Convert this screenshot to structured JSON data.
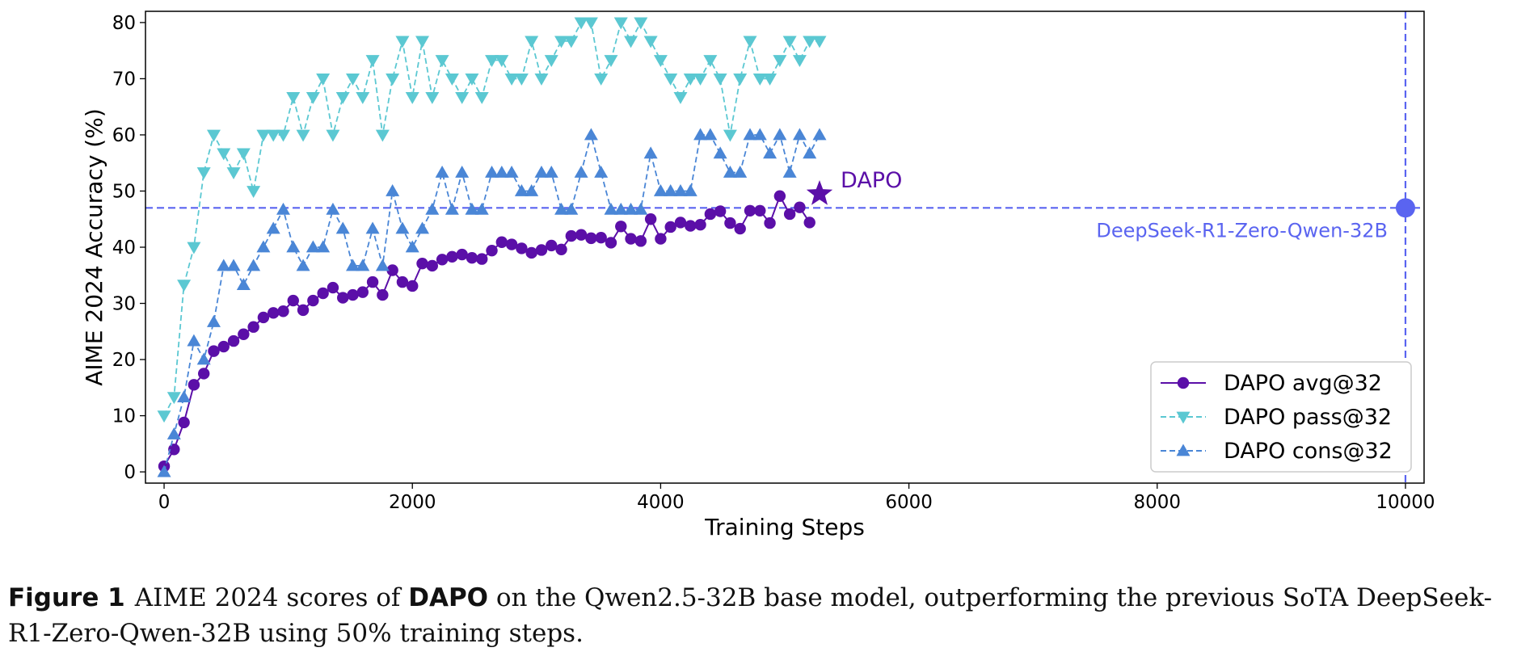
{
  "chart_data": {
    "type": "line",
    "xlabel": "Training Steps",
    "ylabel": "AIME 2024 Accuracy (%)",
    "xlim": [
      -150,
      10150
    ],
    "ylim": [
      -2,
      82
    ],
    "xticks": [
      0,
      2000,
      4000,
      6000,
      8000,
      10000
    ],
    "yticks": [
      0,
      10,
      20,
      30,
      40,
      50,
      60,
      70,
      80
    ],
    "xtick_labels": [
      "0",
      "2000",
      "4000",
      "6000",
      "8000",
      "10000"
    ],
    "ytick_labels": [
      "0",
      "10",
      "20",
      "30",
      "40",
      "50",
      "60",
      "70",
      "80"
    ],
    "grid": false,
    "legend_position": "bottom-right",
    "series": [
      {
        "name": "DAPO avg@32",
        "color": "#5b0fa8",
        "marker": "circle",
        "linestyle": "solid",
        "x": [
          0,
          80,
          160,
          240,
          320,
          400,
          480,
          560,
          640,
          720,
          800,
          880,
          960,
          1040,
          1120,
          1200,
          1280,
          1360,
          1440,
          1520,
          1600,
          1680,
          1760,
          1840,
          1920,
          2000,
          2080,
          2160,
          2240,
          2320,
          2400,
          2480,
          2560,
          2640,
          2720,
          2800,
          2880,
          2960,
          3040,
          3120,
          3200,
          3280,
          3360,
          3440,
          3520,
          3600,
          3680,
          3760,
          3840,
          3920,
          4000,
          4080,
          4160,
          4240,
          4320,
          4400,
          4480,
          4560,
          4640,
          4720,
          4800,
          4880,
          4960,
          5040,
          5120,
          5200
        ],
        "y": [
          1,
          4,
          8.8,
          15.5,
          17.5,
          21.5,
          22.3,
          23.3,
          24.5,
          25.8,
          27.5,
          28.3,
          28.6,
          30.5,
          28.8,
          30.5,
          31.8,
          32.8,
          31,
          31.5,
          32,
          33.8,
          31.5,
          35.9,
          33.8,
          33.1,
          37.1,
          36.7,
          37.8,
          38.3,
          38.7,
          38.1,
          37.9,
          39.4,
          40.9,
          40.5,
          39.8,
          39,
          39.5,
          40.3,
          39.6,
          42,
          42.2,
          41.6,
          41.7,
          40.8,
          43.7,
          41.5,
          41.1,
          45,
          41.5,
          43.6,
          44.4,
          43.8,
          44,
          45.9,
          46.4,
          44.3,
          43.3,
          46.5,
          46.5,
          44.3,
          49.1,
          45.9,
          47.1,
          44.4
        ]
      },
      {
        "name": "DAPO pass@32",
        "color": "#5bc8d2",
        "marker": "triangle-down",
        "linestyle": "dashed",
        "x": [
          0,
          80,
          160,
          240,
          320,
          400,
          480,
          560,
          640,
          720,
          800,
          880,
          960,
          1040,
          1120,
          1200,
          1280,
          1360,
          1440,
          1520,
          1600,
          1680,
          1760,
          1840,
          1920,
          2000,
          2080,
          2160,
          2240,
          2320,
          2400,
          2480,
          2560,
          2640,
          2720,
          2800,
          2880,
          2960,
          3040,
          3120,
          3200,
          3280,
          3360,
          3440,
          3520,
          3600,
          3680,
          3760,
          3840,
          3920,
          4000,
          4080,
          4160,
          4240,
          4320,
          4400,
          4480,
          4560,
          4640,
          4720,
          4800,
          4880,
          4960,
          5040,
          5120,
          5200,
          5280
        ],
        "y": [
          10,
          13.3,
          33.3,
          40,
          53.3,
          60,
          56.7,
          53.3,
          56.7,
          50,
          60,
          60,
          60,
          66.7,
          60,
          66.7,
          70,
          60,
          66.7,
          70,
          66.7,
          73.3,
          60,
          70,
          76.7,
          66.7,
          76.7,
          66.7,
          73.3,
          70,
          66.7,
          70,
          66.7,
          73.3,
          73.3,
          70,
          70,
          76.7,
          70,
          73.3,
          76.7,
          76.7,
          80,
          80,
          70,
          73.3,
          80,
          76.7,
          80,
          76.7,
          73.3,
          70,
          66.7,
          70,
          70,
          73.3,
          70,
          60,
          70,
          76.7,
          70,
          70,
          73.3,
          76.7,
          73.3,
          76.7,
          76.7
        ]
      },
      {
        "name": "DAPO cons@32",
        "color": "#4a86d6",
        "marker": "triangle-up",
        "linestyle": "dashed",
        "x": [
          0,
          80,
          160,
          240,
          320,
          400,
          480,
          560,
          640,
          720,
          800,
          880,
          960,
          1040,
          1120,
          1200,
          1280,
          1360,
          1440,
          1520,
          1600,
          1680,
          1760,
          1840,
          1920,
          2000,
          2080,
          2160,
          2240,
          2320,
          2400,
          2480,
          2560,
          2640,
          2720,
          2800,
          2880,
          2960,
          3040,
          3120,
          3200,
          3280,
          3360,
          3440,
          3520,
          3600,
          3680,
          3760,
          3840,
          3920,
          4000,
          4080,
          4160,
          4240,
          4320,
          4400,
          4480,
          4560,
          4640,
          4720,
          4800,
          4880,
          4960,
          5040,
          5120,
          5200,
          5280
        ],
        "y": [
          0,
          6.7,
          13.3,
          23.3,
          20,
          26.7,
          36.7,
          36.7,
          33.3,
          36.7,
          40,
          43.3,
          46.7,
          40,
          36.7,
          40,
          40,
          46.7,
          43.3,
          36.7,
          36.7,
          43.3,
          36.7,
          50,
          43.3,
          40,
          43.3,
          46.7,
          53.3,
          46.7,
          53.3,
          46.7,
          46.7,
          53.3,
          53.3,
          53.3,
          50,
          50,
          53.3,
          53.3,
          46.7,
          46.7,
          53.3,
          60,
          53.3,
          46.7,
          46.7,
          46.7,
          46.7,
          56.7,
          50,
          50,
          50,
          50,
          60,
          60,
          56.7,
          53.3,
          53.3,
          60,
          60,
          56.7,
          60,
          53.3,
          60,
          56.7,
          60
        ]
      }
    ],
    "dapo_final": {
      "x": 5280,
      "y": 49.5,
      "label": "DAPO",
      "marker": "star",
      "color": "#5b0fa8"
    },
    "reference": {
      "label": "DeepSeek-R1-Zero-Qwen-32B",
      "x": 10000,
      "y": 47,
      "color": "#5a64f0"
    }
  },
  "caption": {
    "fig_label": "Figure 1",
    "text_before": "AIME 2024 scores of ",
    "bold_word": "DAPO",
    "text_after": " on the Qwen2.5-32B base model, outperforming the previous SoTA DeepSeek-R1-Zero-Qwen-32B using 50% training steps."
  }
}
